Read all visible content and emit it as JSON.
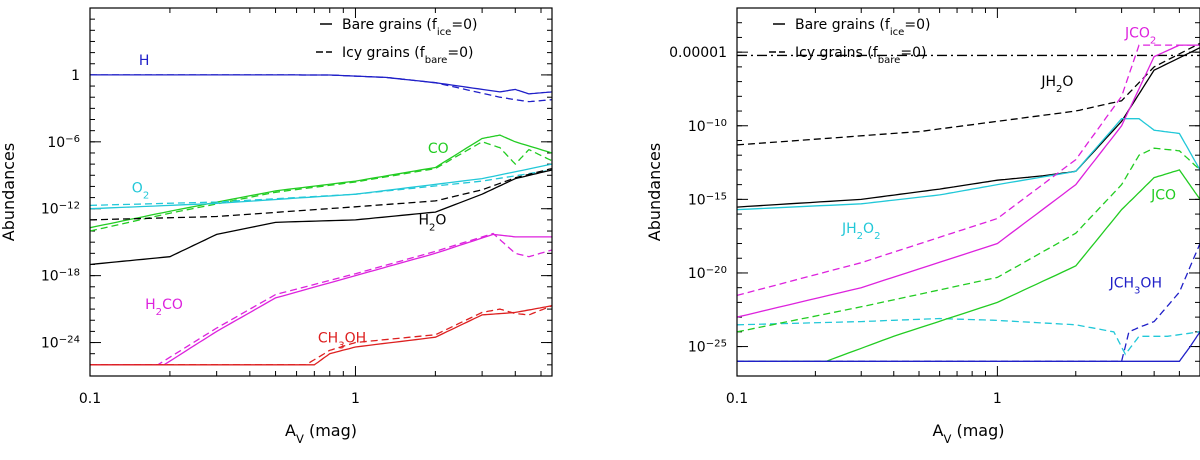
{
  "chart_data": [
    {
      "type": "line",
      "id": "left",
      "xlabel": "A",
      "xlabel_sub": "V",
      "xlabel_rest": " (mag)",
      "ylabel": "Abundances",
      "xscale": "log",
      "yscale": "log",
      "xlim": [
        0.1,
        5.5
      ],
      "ylim": [
        1e-27,
        1000000.0
      ],
      "xticks": [
        {
          "value": 0.1,
          "label": "0.1"
        },
        {
          "value": 1,
          "label": "1"
        }
      ],
      "yticks": [
        {
          "value": 1,
          "base": "1",
          "exp": ""
        },
        {
          "value": 1e-06,
          "base": "10",
          "exp": "−6"
        },
        {
          "value": 1e-12,
          "base": "10",
          "exp": "−12"
        },
        {
          "value": 1e-18,
          "base": "10",
          "exp": "−18"
        },
        {
          "value": 1e-24,
          "base": "10",
          "exp": "−24"
        }
      ],
      "legend": {
        "position": "top-right",
        "entries": [
          {
            "style": "solid",
            "label": "Bare grains (f",
            "sub": "ice",
            "post": "=0)"
          },
          {
            "style": "dashed",
            "label": "Icy grains (f",
            "sub": "bare",
            "post": "=0)"
          }
        ]
      },
      "series": [
        {
          "name": "H",
          "color": "#2020c8",
          "style": "solid",
          "x": [
            0.1,
            0.5,
            0.8,
            1.3,
            2,
            3.5,
            4,
            4.5,
            5.5
          ],
          "y": [
            1,
            1,
            0.98,
            0.6,
            0.2,
            0.03,
            0.05,
            0.02,
            0.03
          ]
        },
        {
          "name": "H",
          "color": "#2020c8",
          "style": "dashed",
          "x": [
            0.1,
            0.5,
            0.8,
            1.3,
            2,
            3.5,
            4,
            4.5,
            5.5
          ],
          "y": [
            1,
            1,
            0.98,
            0.6,
            0.2,
            0.01,
            0.006,
            0.004,
            0.006
          ]
        },
        {
          "name": "CO",
          "color": "#22cc22",
          "style": "solid",
          "x": [
            0.1,
            0.2,
            0.5,
            1,
            2,
            3,
            3.5,
            4,
            5.5
          ],
          "y": [
            2e-14,
            6e-13,
            4e-11,
            3e-10,
            5e-09,
            2e-06,
            4e-06,
            1e-06,
            1e-07
          ]
        },
        {
          "name": "CO",
          "color": "#22cc22",
          "style": "dashed",
          "x": [
            0.1,
            0.2,
            0.5,
            1,
            2,
            3,
            3.5,
            4,
            4.5,
            5.5
          ],
          "y": [
            1e-14,
            4e-13,
            3e-11,
            2.5e-10,
            4e-09,
            1e-06,
            3e-07,
            1e-08,
            2e-07,
            2e-08
          ]
        },
        {
          "name": "O2",
          "color": "#22c8d8",
          "style": "solid",
          "x": [
            0.1,
            0.3,
            1,
            3,
            5.5
          ],
          "y": [
            1e-12,
            3e-12,
            2e-11,
            5e-10,
            1e-08
          ]
        },
        {
          "name": "O2",
          "color": "#22c8d8",
          "style": "dashed",
          "x": [
            0.1,
            0.3,
            1,
            3,
            5.5
          ],
          "y": [
            2e-12,
            4e-12,
            2e-11,
            3e-10,
            3e-09
          ]
        },
        {
          "name": "H2O",
          "color": "#000000",
          "style": "solid",
          "x": [
            0.1,
            0.2,
            0.3,
            0.5,
            1,
            2,
            3,
            4,
            5.5
          ],
          "y": [
            1e-17,
            5e-17,
            5e-15,
            6e-14,
            1e-13,
            5e-13,
            2e-11,
            5e-10,
            3e-09
          ]
        },
        {
          "name": "H2O",
          "color": "#000000",
          "style": "dashed",
          "x": [
            0.1,
            0.3,
            1,
            2,
            3,
            4,
            5.5
          ],
          "y": [
            1e-13,
            2e-13,
            1.5e-12,
            5e-12,
            5e-11,
            6e-10,
            4e-09
          ]
        },
        {
          "name": "H2CO",
          "color": "#dd22dd",
          "style": "solid",
          "x": [
            0.1,
            0.19,
            0.3,
            0.5,
            1,
            2,
            3.3,
            4,
            4.5,
            5.5
          ],
          "y": [
            1e-26,
            1e-26,
            1e-23,
            1e-20,
            1e-18,
            1e-16,
            5e-15,
            3e-15,
            3e-15,
            3e-15
          ]
        },
        {
          "name": "H2CO",
          "color": "#dd22dd",
          "style": "dashed",
          "x": [
            0.1,
            0.18,
            0.3,
            0.5,
            1,
            2,
            3.3,
            4,
            4.5,
            5.5
          ],
          "y": [
            1e-26,
            1e-26,
            2e-23,
            2e-20,
            1.5e-18,
            1.5e-16,
            6e-15,
            1e-16,
            5e-17,
            2e-16
          ]
        },
        {
          "name": "CH3OH",
          "color": "#dd2020",
          "style": "solid",
          "x": [
            0.1,
            0.7,
            0.8,
            1,
            2,
            3,
            4,
            5.5
          ],
          "y": [
            1e-26,
            1e-26,
            1e-25,
            4e-25,
            3e-24,
            3e-22,
            5e-22,
            2e-21
          ]
        },
        {
          "name": "CH3OH",
          "color": "#dd2020",
          "style": "dashed",
          "x": [
            0.1,
            0.65,
            0.8,
            1,
            2,
            3,
            3.5,
            4,
            4.5,
            5.5
          ],
          "y": [
            1e-26,
            1e-26,
            2e-25,
            1e-24,
            5e-24,
            5e-22,
            1e-21,
            4e-22,
            3e-22,
            2e-21
          ]
        }
      ],
      "labels": [
        {
          "text": "H",
          "sub": "",
          "post": "",
          "x": 0.16,
          "y": 8,
          "color": "#2020c8"
        },
        {
          "text": "CO",
          "sub": "",
          "post": "",
          "x": 2.05,
          "y": 1e-07,
          "color": "#22cc22"
        },
        {
          "text": "O",
          "sub": "2",
          "post": "",
          "x": 0.155,
          "y": 3e-11,
          "color": "#22c8d8"
        },
        {
          "text": "H",
          "sub": "2",
          "post": "O",
          "x": 1.95,
          "y": 4e-14,
          "color": "#000000"
        },
        {
          "text": "H",
          "sub": "2",
          "post": "CO",
          "x": 0.19,
          "y": 1e-21,
          "color": "#dd22dd"
        },
        {
          "text": "CH",
          "sub": "3",
          "post": "OH",
          "x": 0.89,
          "y": 1e-24,
          "color": "#dd2020"
        }
      ]
    },
    {
      "type": "line",
      "id": "right",
      "xlabel": "A",
      "xlabel_sub": "V",
      "xlabel_rest": " (mag)",
      "ylabel": "Abundances",
      "xscale": "log",
      "yscale": "log",
      "xlim": [
        0.1,
        6
      ],
      "ylim": [
        1e-27,
        0.01
      ],
      "xticks": [
        {
          "value": 0.1,
          "label": "0.1"
        },
        {
          "value": 1,
          "label": "1"
        }
      ],
      "yticks": [
        {
          "value": 1e-05,
          "base": "0.00001",
          "exp": ""
        },
        {
          "value": 1e-10,
          "base": "10",
          "exp": "−10"
        },
        {
          "value": 1e-15,
          "base": "10",
          "exp": "−15"
        },
        {
          "value": 1e-20,
          "base": "10",
          "exp": "−20"
        },
        {
          "value": 1e-25,
          "base": "10",
          "exp": "−25"
        }
      ],
      "legend": {
        "position": "top-left",
        "entries": [
          {
            "style": "solid",
            "label": "Bare grains (f",
            "sub": "ice",
            "post": "=0)"
          },
          {
            "style": "dashed",
            "label": "Icy grains (f",
            "sub": "bare",
            "post": "=0)"
          }
        ]
      },
      "reference_line": {
        "y": 6e-06,
        "style": "dashdot",
        "color": "#000000"
      },
      "series": [
        {
          "name": "JH2O",
          "color": "#000000",
          "style": "solid",
          "x": [
            0.1,
            0.3,
            0.6,
            1,
            1.5,
            2,
            3,
            4,
            6
          ],
          "y": [
            3e-16,
            1e-15,
            5e-15,
            2e-14,
            4e-14,
            8e-14,
            2e-10,
            6e-07,
            2e-05
          ]
        },
        {
          "name": "JH2O",
          "color": "#000000",
          "style": "dashed",
          "x": [
            0.1,
            0.5,
            1,
            2,
            3,
            4,
            6
          ],
          "y": [
            5e-12,
            4e-11,
            2e-10,
            1e-09,
            5e-09,
            1e-06,
            4e-05
          ]
        },
        {
          "name": "JH2O2",
          "color": "#22c8d8",
          "style": "solid",
          "x": [
            0.1,
            0.3,
            0.6,
            1,
            2,
            3,
            3.5,
            4,
            5,
            6
          ],
          "y": [
            2e-16,
            5e-16,
            2e-15,
            1e-14,
            8e-14,
            3e-10,
            3e-10,
            5e-11,
            3e-11,
            1e-13
          ]
        },
        {
          "name": "JH2O2",
          "color": "#22c8d8",
          "style": "dashed",
          "x": [
            0.1,
            0.3,
            0.6,
            1,
            2,
            2.8,
            3.1,
            3.5,
            4.5,
            6
          ],
          "y": [
            3e-24,
            5e-24,
            8e-24,
            6e-24,
            3e-24,
            1e-24,
            3e-26,
            5e-25,
            5e-25,
            1e-24
          ]
        },
        {
          "name": "JCO2",
          "color": "#dd22dd",
          "style": "solid",
          "x": [
            0.1,
            0.3,
            1,
            2,
            3,
            4,
            5,
            6
          ],
          "y": [
            1e-23,
            1e-21,
            1e-18,
            1e-14,
            1e-10,
            5e-06,
            3e-05,
            3e-05
          ]
        },
        {
          "name": "JCO2",
          "color": "#dd22dd",
          "style": "dashed",
          "x": [
            0.1,
            0.3,
            1,
            2,
            3,
            3.5,
            6
          ],
          "y": [
            3e-22,
            5e-20,
            5e-17,
            5e-13,
            1e-08,
            3e-05,
            3e-05
          ]
        },
        {
          "name": "JCO",
          "color": "#22cc22",
          "style": "solid",
          "x": [
            0.1,
            0.22,
            0.4,
            1,
            2,
            3,
            4,
            5,
            6
          ],
          "y": [
            1e-26,
            1e-26,
            5e-25,
            1e-22,
            3e-20,
            2e-16,
            3e-14,
            1e-13,
            1e-15
          ]
        },
        {
          "name": "JCO",
          "color": "#22cc22",
          "style": "dashed",
          "x": [
            0.1,
            0.3,
            1,
            2,
            3,
            3.5,
            4,
            5,
            6
          ],
          "y": [
            1e-24,
            5e-23,
            5e-21,
            5e-18,
            1e-14,
            1e-12,
            3e-12,
            2e-12,
            1e-13
          ]
        },
        {
          "name": "JCH3OH",
          "color": "#2020c8",
          "style": "solid",
          "x": [
            0.1,
            5,
            5.5,
            6
          ],
          "y": [
            1e-26,
            1e-26,
            1e-25,
            1e-24
          ]
        },
        {
          "name": "JCH3OH",
          "color": "#2020c8",
          "style": "dashed",
          "x": [
            0.1,
            3.0,
            3.2,
            3.5,
            4,
            5,
            6
          ],
          "y": [
            1e-26,
            1e-26,
            1e-24,
            2e-24,
            5e-24,
            5e-22,
            1e-18
          ]
        }
      ],
      "labels": [
        {
          "text": "JCO",
          "sub": "2",
          "post": "",
          "x": 3.55,
          "y": 0.0001,
          "color": "#dd22dd"
        },
        {
          "text": "JH",
          "sub": "2",
          "post": "O",
          "x": 1.7,
          "y": 5e-08,
          "color": "#000000"
        },
        {
          "text": "JH",
          "sub": "2",
          "post": "O",
          "sub2": "2",
          "post2": "",
          "x": 0.3,
          "y": 5e-18,
          "color": "#22c8d8"
        },
        {
          "text": "JCO",
          "sub": "",
          "post": "",
          "x": 4.35,
          "y": 1e-15,
          "color": "#22cc22"
        },
        {
          "text": "JCH",
          "sub": "3",
          "post": "OH",
          "x": 3.4,
          "y": 1e-21,
          "color": "#2020c8"
        }
      ]
    }
  ]
}
